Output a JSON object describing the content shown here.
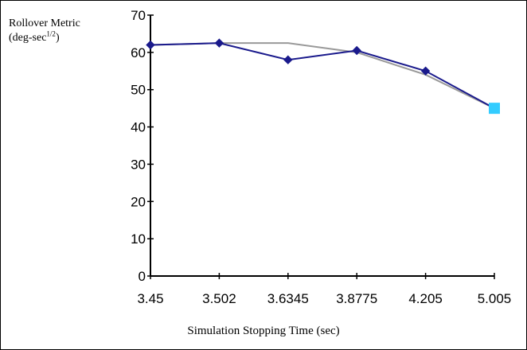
{
  "chart_data": {
    "type": "line",
    "categories": [
      "3.45",
      "3.502",
      "3.6345",
      "3.8775",
      "4.205",
      "5.005"
    ],
    "series": [
      {
        "values": [
          62,
          62.5,
          58,
          60.5,
          55,
          45
        ],
        "color": "#1a1a8c",
        "marker": "diamond"
      },
      {
        "values": [
          62,
          62.5,
          62.5,
          60,
          54,
          45
        ],
        "color": "#999999",
        "marker": "none"
      }
    ],
    "highlight_point": {
      "category": "5.005",
      "value": 45,
      "color": "#33ccff",
      "marker": "square"
    },
    "ylabel_line1": "Rollover Metric",
    "ylabel_line2_base": "(deg-sec",
    "ylabel_line2_sup": "1/2",
    "ylabel_line2_end": ")",
    "xlabel": "Simulation Stopping Time (sec)",
    "ylim": [
      0,
      70
    ],
    "yticks": [
      0,
      10,
      20,
      30,
      40,
      50,
      60,
      70
    ],
    "grid": false,
    "legend": "none"
  }
}
